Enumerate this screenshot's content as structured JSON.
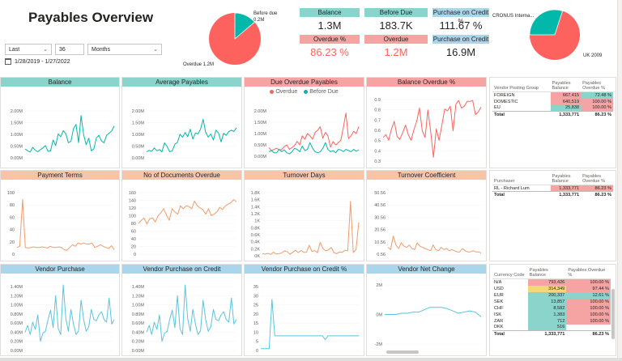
{
  "title": "Payables Overview",
  "filters": {
    "period_type": "Last",
    "period_count": "36",
    "period_unit": "Months",
    "date_range": "1/28/2019 - 1/27/2022"
  },
  "pie_overdue": {
    "label_before_due": "Before due",
    "value_before_due": "0.2M",
    "label_overdue": "Overdue 1.2M",
    "colors": {
      "overdue": "#fd625e",
      "before_due": "#01b8aa"
    },
    "fraction_before_due": 0.138
  },
  "pie_country": {
    "label_cronus": "CRONUS Interna...",
    "label_uk": "UK 2009",
    "colors": {
      "uk": "#fd625e",
      "cronus": "#01b8aa"
    },
    "fraction_cronus": 0.3
  },
  "kpis": [
    {
      "label": "Balance",
      "value": "1.3M",
      "value_color": "#252423"
    },
    {
      "label": "Before Due",
      "value": "183.7K",
      "value_color": "#252423"
    },
    {
      "label": "Purchase on Credit %",
      "value": "111.67 %",
      "value_color": "#252423"
    },
    {
      "label": "Overdue %",
      "value": "86.23 %",
      "value_color": "#fd625e"
    },
    {
      "label": "Overdue",
      "value": "1.2M",
      "value_color": "#fd625e"
    },
    {
      "label": "Purchase on Credit",
      "value": "16.9M",
      "value_color": "#252423"
    }
  ],
  "charts": {
    "balance": {
      "title": "Balance",
      "y_ticks": [
        "2.00M",
        "1.50M",
        "1.00M",
        "0.50M",
        "0.00M"
      ]
    },
    "avg_payables": {
      "title": "Average Payables",
      "y_ticks": [
        "2.00M",
        "1.50M",
        "1.00M",
        "0.50M",
        "0.00M"
      ]
    },
    "due_overdue": {
      "title": "Due Overdue Payables",
      "y_ticks": [
        "2.00M",
        "1.50M",
        "1.00M",
        "0.50M",
        "0.00M"
      ],
      "legend_overdue": "Overdue",
      "legend_before_due": "Before Due"
    },
    "balance_overdue_pct": {
      "title": "Balance Overdue %",
      "y_ticks": [
        "0.9",
        "0.8",
        "0.7",
        "0.6",
        "0.5",
        "0.4",
        "0.3"
      ]
    },
    "payment_terms": {
      "title": "Payment Terms",
      "y_ticks": [
        "100",
        "80",
        "60",
        "40",
        "20",
        "0"
      ]
    },
    "docs_overdue": {
      "title": "No of Documents Overdue",
      "y_ticks": [
        "160",
        "140",
        "120",
        "100",
        "80",
        "60",
        "40",
        "20",
        "0"
      ]
    },
    "turnover_days": {
      "title": "Turnover Days",
      "y_ticks": [
        "1.8K",
        "1.6K",
        "1.4K",
        "1.2K",
        "1K",
        "0.8K",
        "0.6K",
        "0.4K",
        "0.2K",
        "0K"
      ]
    },
    "turnover_coef": {
      "title": "Turnover Coefficient",
      "y_ticks": [
        "50.56",
        "40.56",
        "30.56",
        "20.56",
        "10.56",
        "0.56"
      ]
    },
    "vendor_purchase": {
      "title": "Vendor Purchase",
      "y_ticks": [
        "1.40M",
        "1.20M",
        "1.00M",
        "0.80M",
        "0.60M",
        "0.40M",
        "0.20M",
        "0.00M"
      ]
    },
    "vendor_purchase_credit": {
      "title": "Vendor Purchase on Credit",
      "y_ticks": [
        "1.40M",
        "1.20M",
        "1.00M",
        "0.80M",
        "0.60M",
        "0.40M",
        "0.20M",
        "0.00M"
      ]
    },
    "vendor_purchase_credit_pct": {
      "title": "Vendor Purchase on Credit %",
      "y_ticks": [
        "35",
        "30",
        "25",
        "20",
        "15",
        "10",
        "5",
        "0"
      ]
    },
    "vendor_net_change": {
      "title": "Vendor Net Change",
      "y_ticks": [
        "2M",
        "0M",
        "-2M"
      ]
    }
  },
  "chart_data": [
    {
      "type": "line",
      "title": "Balance",
      "ylim": [
        0,
        2000000
      ],
      "series": [
        {
          "values": [
            380000,
            300000,
            250000,
            450000,
            320000,
            260000,
            350000,
            420000,
            520000,
            280000,
            300000,
            760000,
            520000,
            1020000,
            900000,
            1160000,
            1020000,
            650000,
            700000,
            1240000,
            1420000,
            650000,
            1800000,
            980000,
            560000,
            840000,
            300000,
            380000,
            850000,
            960000,
            720000,
            640000,
            960000,
            1050000,
            1140000,
            1360000
          ]
        }
      ]
    },
    {
      "type": "line",
      "title": "Average Payables",
      "ylim": [
        0,
        2000000
      ],
      "series": [
        {
          "values": [
            260000,
            320000,
            280000,
            420000,
            300000,
            350000,
            260000,
            640000,
            480000,
            260000,
            300000,
            580000,
            660000,
            1000000,
            880000,
            1080000,
            900000,
            1220000,
            800000,
            1060000,
            1020000,
            1220000,
            1640000,
            1100000,
            880000,
            1020000,
            760000,
            1180000,
            1060000,
            680000,
            1040000,
            960000,
            1120000,
            1180000,
            1120000,
            1280000
          ]
        }
      ]
    },
    {
      "type": "line",
      "title": "Due Overdue Payables",
      "ylim": [
        0,
        2000000
      ],
      "series": [
        {
          "name": "Overdue",
          "values": [
            380000,
            250000,
            300000,
            350000,
            280000,
            300000,
            420000,
            500000,
            300000,
            380000,
            480000,
            650000,
            500000,
            900000,
            750000,
            1000000,
            900000,
            750000,
            1050000,
            1150000,
            1300000,
            800000,
            1050000,
            900000,
            400000,
            650000,
            500000,
            600000,
            700000,
            1280000,
            1900000,
            780000,
            900000,
            1100000,
            1000000,
            1300000
          ]
        },
        {
          "name": "Before Due",
          "values": [
            200000,
            250000,
            150000,
            150000,
            300000,
            200000,
            280000,
            150000,
            100000,
            200000,
            350000,
            300000,
            200000,
            450000,
            250000,
            300000,
            600000,
            350000,
            200000,
            150000,
            200000,
            350000,
            600000,
            300000,
            200000,
            250000,
            150000,
            300000,
            280000,
            200000,
            300000,
            250000,
            200000,
            300000,
            220000,
            280000
          ]
        }
      ]
    },
    {
      "type": "line",
      "title": "Balance Overdue %",
      "ylim": [
        0.3,
        0.95
      ],
      "series": [
        {
          "values": [
            0.55,
            0.58,
            0.52,
            0.64,
            0.72,
            0.56,
            0.53,
            0.6,
            0.68,
            0.58,
            0.52,
            0.63,
            0.72,
            0.86,
            0.62,
            0.55,
            0.84,
            0.61,
            0.34,
            0.64,
            0.52,
            0.68,
            0.85,
            0.83,
            0.88,
            0.62,
            0.9,
            0.94,
            0.86,
            0.88,
            0.93,
            0.93,
            0.94,
            0.79,
            0.82,
            0.87
          ]
        }
      ]
    },
    {
      "type": "line",
      "title": "Payment Terms",
      "ylim": [
        0,
        110
      ],
      "series": [
        {
          "values": [
            12,
            14,
            98,
            12,
            11,
            12,
            13,
            12,
            12,
            13,
            12,
            11,
            14,
            12,
            12,
            13,
            12,
            8,
            7,
            12,
            17,
            14,
            20,
            18,
            20,
            18,
            18,
            20,
            12,
            14,
            17,
            14,
            12,
            10,
            15,
            8
          ]
        }
      ]
    },
    {
      "type": "line",
      "title": "No of Documents Overdue",
      "ylim": [
        0,
        160
      ],
      "series": [
        {
          "values": [
            80,
            88,
            94,
            78,
            92,
            94,
            84,
            100,
            108,
            118,
            102,
            88,
            118,
            110,
            104,
            126,
            118,
            126,
            124,
            118,
            138,
            126,
            120,
            116,
            104,
            118,
            100,
            104,
            110,
            122,
            116,
            126,
            130,
            134,
            142,
            136
          ]
        }
      ]
    },
    {
      "type": "line",
      "title": "Turnover Days",
      "ylim": [
        0,
        1800
      ],
      "series": [
        {
          "values": [
            60,
            45,
            70,
            40,
            100,
            50,
            60,
            80,
            140,
            120,
            40,
            100,
            160,
            90,
            150,
            100,
            100,
            300,
            120,
            150,
            90,
            380,
            200,
            140,
            170,
            240,
            90,
            60,
            110,
            100,
            160,
            140,
            1550,
            90,
            180,
            950
          ]
        }
      ]
    },
    {
      "type": "line",
      "title": "Turnover Coefficient",
      "ylim": [
        0,
        54
      ],
      "series": [
        {
          "values": [
            6,
            4,
            16,
            8,
            5,
            10,
            7,
            6,
            8,
            5,
            4,
            10,
            7,
            6,
            5,
            4,
            3,
            8,
            4,
            3,
            6,
            4,
            5,
            3,
            4,
            3,
            2,
            2,
            5,
            3,
            2,
            2,
            3,
            2,
            2,
            1
          ]
        }
      ]
    },
    {
      "type": "line",
      "title": "Vendor Purchase",
      "ylim": [
        0,
        1400000
      ],
      "series": [
        {
          "values": [
            400000,
            550000,
            350000,
            620000,
            460000,
            780000,
            200000,
            380000,
            420000,
            680000,
            880000,
            500000,
            1200000,
            480000,
            350000,
            1480000,
            700000,
            420000,
            900000,
            580000,
            350000,
            430000,
            1100000,
            680000,
            420000,
            520000,
            900000,
            680000,
            650000,
            780000,
            850000,
            680000,
            620000,
            1150000,
            580000,
            680000
          ]
        }
      ]
    },
    {
      "type": "line",
      "title": "Vendor Purchase on Credit",
      "ylim": [
        0,
        1400000
      ],
      "series": [
        {
          "values": [
            400000,
            550000,
            350000,
            620000,
            460000,
            780000,
            200000,
            380000,
            420000,
            680000,
            880000,
            500000,
            1200000,
            480000,
            350000,
            1480000,
            700000,
            420000,
            900000,
            580000,
            350000,
            430000,
            1100000,
            680000,
            420000,
            520000,
            900000,
            680000,
            650000,
            780000,
            850000,
            680000,
            620000,
            1150000,
            580000,
            680000
          ]
        }
      ]
    },
    {
      "type": "line",
      "title": "Vendor Purchase on Credit %",
      "ylim": [
        0,
        35
      ],
      "series": [
        {
          "values": [
            1,
            1,
            1,
            1,
            28,
            8,
            8,
            8,
            8,
            8,
            8,
            8,
            8,
            8,
            8,
            8,
            8,
            8,
            8,
            8,
            8,
            8,
            8,
            6,
            8,
            8,
            8,
            8,
            8,
            8,
            8,
            8,
            8,
            8,
            8,
            8
          ]
        }
      ]
    },
    {
      "type": "line",
      "title": "Vendor Net Change",
      "ylim": [
        -2.5,
        2.5
      ],
      "series": [
        {
          "values": [
            0,
            0,
            0,
            0.1,
            0.1,
            0.2,
            0.2,
            0.4,
            0.6,
            0.6,
            0.6,
            0.5,
            0.3,
            0.1,
            0.2,
            0.3,
            0.2,
            -0.2
          ]
        }
      ]
    },
    {
      "type": "table",
      "title": "Vendor Posting Group",
      "columns": [
        "Vendor Posting Group",
        "Payables Balance",
        "Payables Overdue %"
      ],
      "rows": [
        [
          "FOREIGN",
          "667,415",
          "72.48 %"
        ],
        [
          "DOMESTIC",
          "640,519",
          "100.00 %"
        ],
        [
          "EU",
          "25,838",
          "100.00 %"
        ]
      ],
      "total": [
        "Total",
        "1,333,771",
        "86.23 %"
      ]
    },
    {
      "type": "table",
      "title": "Purchaser",
      "columns": [
        "Purchaser",
        "Payables Balance",
        "Payables Overdue %"
      ],
      "rows": [
        [
          "RL - Richard Lum",
          "1,333,771",
          "86.23 %"
        ]
      ],
      "total": [
        "Total",
        "1,333,771",
        "86.23 %"
      ]
    },
    {
      "type": "table",
      "title": "Currency Code",
      "columns": [
        "Currency Code",
        "Payables Balance",
        "Payables Overdue %"
      ],
      "rows": [
        [
          "N/A",
          "793,426",
          "100.00 %"
        ],
        [
          "USD",
          "314,349",
          "97.44 %"
        ],
        [
          "EUR",
          "200,337",
          "12.61 %"
        ],
        [
          "SEK",
          "13,857",
          "100.00 %"
        ],
        [
          "CHF",
          "8,582",
          "100.00 %"
        ],
        [
          "ISK",
          "1,383",
          "100.00 %"
        ],
        [
          "ZAR",
          "712",
          "100.00 %"
        ],
        [
          "DKK",
          "516",
          ""
        ]
      ],
      "total": [
        "Total",
        "1,333,771",
        "86.23 %"
      ]
    }
  ],
  "tables": {
    "posting_group": {
      "headers": [
        "Vendor Posting Group",
        "Payables Balance",
        "Payables Overdue %"
      ],
      "rows": [
        {
          "name": "FOREIGN",
          "balance": "667,415",
          "overdue": "72.48 %",
          "bal_bg": "pink",
          "od_bg": "teal"
        },
        {
          "name": "DOMESTIC",
          "balance": "640,519",
          "overdue": "100.00 %",
          "bal_bg": "pink",
          "od_bg": "pink"
        },
        {
          "name": "EU",
          "balance": "25,838",
          "overdue": "100.00 %",
          "bal_bg": "teal",
          "od_bg": "pink"
        }
      ],
      "total": {
        "name": "Total",
        "balance": "1,333,771",
        "overdue": "86.23 %"
      }
    },
    "purchaser": {
      "headers": [
        "Purchaser",
        "Payables Balance",
        "Payables Overdue %"
      ],
      "rows": [
        {
          "name": "RL - Richard Lum",
          "balance": "1,333,771",
          "overdue": "86.23 %",
          "bal_bg": "pink",
          "od_bg": "pink"
        }
      ],
      "total": {
        "name": "Total",
        "balance": "1,333,771",
        "overdue": "86.23 %"
      }
    },
    "currency": {
      "headers": [
        "Currency Code",
        "Payables Balance",
        "Payables Overdue %"
      ],
      "rows": [
        {
          "name": "N/A",
          "balance": "793,426",
          "overdue": "100.00 %",
          "bal_bg": "pink",
          "od_bg": "pink"
        },
        {
          "name": "USD",
          "balance": "314,349",
          "overdue": "97.44 %",
          "bal_bg": "yellow",
          "od_bg": "pink"
        },
        {
          "name": "EUR",
          "balance": "200,337",
          "overdue": "12.61 %",
          "bal_bg": "teal",
          "od_bg": "teal"
        },
        {
          "name": "SEK",
          "balance": "13,857",
          "overdue": "100.00 %",
          "bal_bg": "teal",
          "od_bg": "pink"
        },
        {
          "name": "CHF",
          "balance": "8,582",
          "overdue": "100.00 %",
          "bal_bg": "teal",
          "od_bg": "pink"
        },
        {
          "name": "ISK",
          "balance": "1,383",
          "overdue": "100.00 %",
          "bal_bg": "teal",
          "od_bg": "pink"
        },
        {
          "name": "ZAR",
          "balance": "712",
          "overdue": "100.00 %",
          "bal_bg": "teal",
          "od_bg": "pink"
        },
        {
          "name": "DKK",
          "balance": "516",
          "overdue": "",
          "bal_bg": "teal",
          "od_bg": ""
        }
      ],
      "total": {
        "name": "Total",
        "balance": "1,333,771",
        "overdue": "86.23 %"
      }
    }
  },
  "colors": {
    "teal": "#01b8aa",
    "red": "#fd625e",
    "orange": "#f29b6b",
    "blue": "#5ac4e0"
  }
}
